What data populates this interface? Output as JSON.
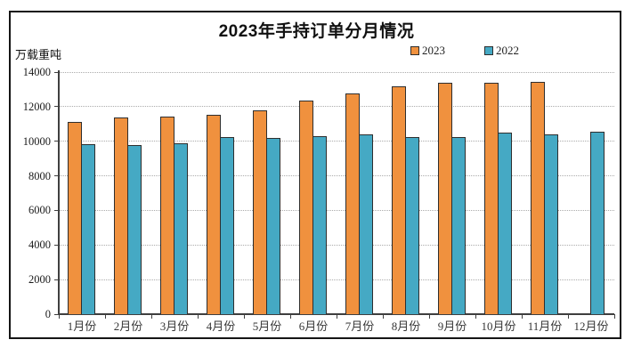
{
  "window": {
    "background": "#ffffff",
    "frame_border_color": "#151515"
  },
  "chart_data": {
    "type": "bar",
    "title": "2023年手持订单分月情况",
    "ylabel": "万载重吨",
    "xlabel": "",
    "categories": [
      "1月份",
      "2月份",
      "3月份",
      "4月份",
      "5月份",
      "6月份",
      "7月份",
      "8月份",
      "9月份",
      "10月份",
      "11月份",
      "12月份"
    ],
    "series": [
      {
        "name": "2023",
        "color": "#F0913E",
        "values": [
          11107,
          11362,
          11452,
          11521,
          11799,
          12377,
          12790,
          13175,
          13393,
          13382,
          13409,
          null
        ]
      },
      {
        "name": "2022",
        "color": "#45A9C4",
        "values": [
          9852,
          9800,
          9896,
          10247,
          10205,
          10274,
          10382,
          10220,
          10249,
          10477,
          10399,
          10557
        ]
      }
    ],
    "ylim": [
      0,
      14000
    ],
    "ytick_interval": 2000,
    "ytick_labels": [
      "0",
      "2000",
      "4000",
      "6000",
      "8000",
      "10000",
      "12000",
      "14000"
    ],
    "grid": "horizontal-dotted",
    "legend_position": "top-right",
    "bar_border_color": "#2e2e2e",
    "gridline_color": "#ababab",
    "axis_color": "#3f3f3f",
    "text_color": "#1a1a1a"
  }
}
